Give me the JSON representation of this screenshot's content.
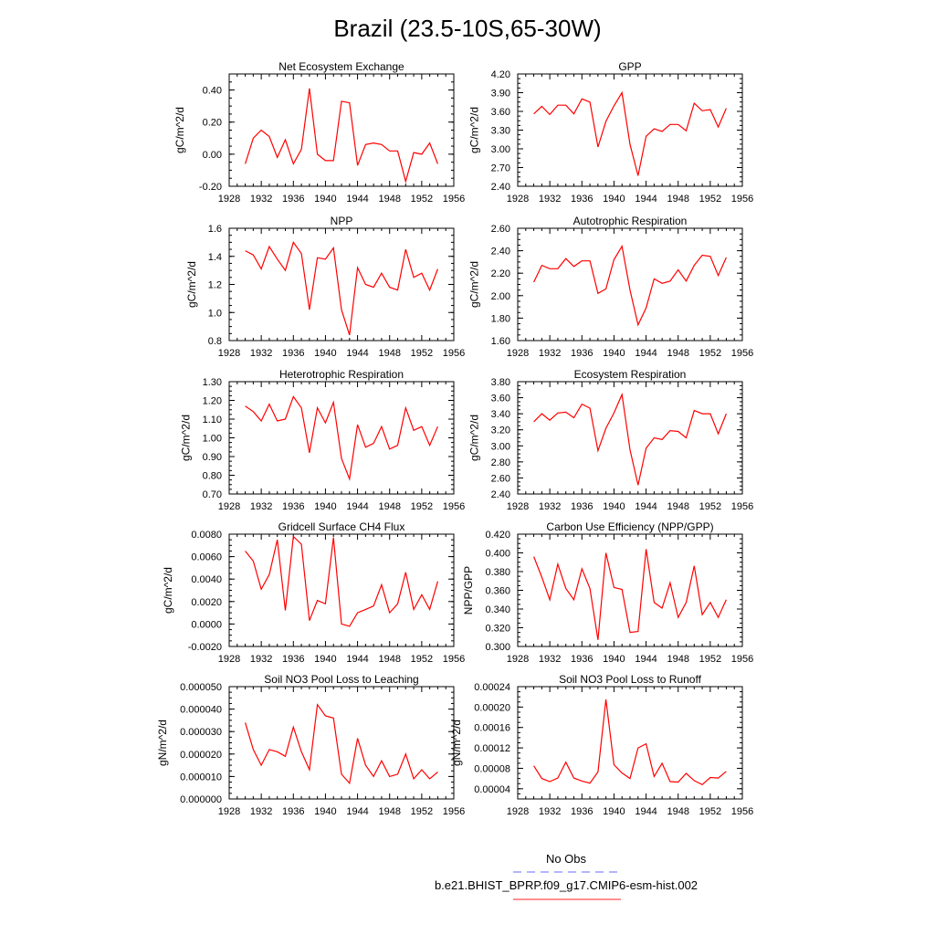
{
  "figure": {
    "title": "Brazil (23.5-10S,65-30W)",
    "legend": [
      {
        "label": "No Obs",
        "color": "#6a6aff",
        "dash": true
      },
      {
        "label": "b.e21.BHIST_BPRP.f09_g17.CMIP6-esm-hist.002",
        "color": "#ff2020",
        "dash": false
      }
    ],
    "series_color": "#ff0000"
  },
  "chart_data": [
    {
      "type": "line",
      "title": "Net Ecosystem Exchange",
      "ylabel": "gC/m^2/d",
      "xlim": [
        1928,
        1956
      ],
      "xticks": [
        "1928",
        "1932",
        "1936",
        "1940",
        "1944",
        "1948",
        "1952",
        "1956"
      ],
      "ylim": [
        -0.2,
        0.5
      ],
      "yticks": [
        "-0.20",
        "0.00",
        "0.20",
        "0.40"
      ],
      "ytick_values": [
        -0.2,
        0.0,
        0.2,
        0.4
      ],
      "x": [
        1930,
        1931,
        1932,
        1933,
        1934,
        1935,
        1936,
        1937,
        1938,
        1939,
        1940,
        1941,
        1942,
        1943,
        1944,
        1945,
        1946,
        1947,
        1948,
        1949,
        1950,
        1951,
        1952,
        1953,
        1954
      ],
      "values": [
        -0.06,
        0.1,
        0.15,
        0.11,
        -0.02,
        0.09,
        -0.06,
        0.03,
        0.41,
        0.0,
        -0.04,
        -0.04,
        0.33,
        0.32,
        -0.07,
        0.06,
        0.07,
        0.06,
        0.02,
        0.02,
        -0.17,
        0.01,
        0.0,
        0.07,
        -0.06
      ]
    },
    {
      "type": "line",
      "title": "GPP",
      "ylabel": "gC/m^2/d",
      "xlim": [
        1928,
        1956
      ],
      "xticks": [
        "1928",
        "1932",
        "1936",
        "1940",
        "1944",
        "1948",
        "1952",
        "1956"
      ],
      "ylim": [
        2.4,
        4.2
      ],
      "yticks": [
        "2.40",
        "2.70",
        "3.00",
        "3.30",
        "3.60",
        "3.90",
        "4.20"
      ],
      "ytick_values": [
        2.4,
        2.7,
        3.0,
        3.3,
        3.6,
        3.9,
        4.2
      ],
      "x": [
        1930,
        1931,
        1932,
        1933,
        1934,
        1935,
        1936,
        1937,
        1938,
        1939,
        1940,
        1941,
        1942,
        1943,
        1944,
        1945,
        1946,
        1947,
        1948,
        1949,
        1950,
        1951,
        1952,
        1953,
        1954
      ],
      "values": [
        3.56,
        3.68,
        3.55,
        3.7,
        3.7,
        3.56,
        3.8,
        3.75,
        3.03,
        3.44,
        3.69,
        3.9,
        3.07,
        2.57,
        3.2,
        3.32,
        3.28,
        3.39,
        3.39,
        3.29,
        3.73,
        3.61,
        3.63,
        3.35,
        3.65
      ]
    },
    {
      "type": "line",
      "title": "NPP",
      "ylabel": "gC/m^2/d",
      "xlim": [
        1928,
        1956
      ],
      "xticks": [
        "1928",
        "1932",
        "1936",
        "1940",
        "1944",
        "1948",
        "1952",
        "1956"
      ],
      "ylim": [
        0.8,
        1.6
      ],
      "yticks": [
        "0.8",
        "1.0",
        "1.2",
        "1.4",
        "1.6"
      ],
      "ytick_values": [
        0.8,
        1.0,
        1.2,
        1.4,
        1.6
      ],
      "x": [
        1930,
        1931,
        1932,
        1933,
        1934,
        1935,
        1936,
        1937,
        1938,
        1939,
        1940,
        1941,
        1942,
        1943,
        1944,
        1945,
        1946,
        1947,
        1948,
        1949,
        1950,
        1951,
        1952,
        1953,
        1954
      ],
      "values": [
        1.44,
        1.41,
        1.31,
        1.47,
        1.38,
        1.3,
        1.5,
        1.42,
        1.02,
        1.39,
        1.38,
        1.46,
        1.02,
        0.84,
        1.32,
        1.2,
        1.18,
        1.28,
        1.18,
        1.16,
        1.45,
        1.25,
        1.28,
        1.16,
        1.31
      ]
    },
    {
      "type": "line",
      "title": "Autotrophic Respiration",
      "ylabel": "gC/m^2/d",
      "xlim": [
        1928,
        1956
      ],
      "xticks": [
        "1928",
        "1932",
        "1936",
        "1940",
        "1944",
        "1948",
        "1952",
        "1956"
      ],
      "ylim": [
        1.6,
        2.6
      ],
      "yticks": [
        "1.60",
        "1.80",
        "2.00",
        "2.20",
        "2.40",
        "2.60"
      ],
      "ytick_values": [
        1.6,
        1.8,
        2.0,
        2.2,
        2.4,
        2.6
      ],
      "x": [
        1930,
        1931,
        1932,
        1933,
        1934,
        1935,
        1936,
        1937,
        1938,
        1939,
        1940,
        1941,
        1942,
        1943,
        1944,
        1945,
        1946,
        1947,
        1948,
        1949,
        1950,
        1951,
        1952,
        1953,
        1954
      ],
      "values": [
        2.12,
        2.27,
        2.24,
        2.24,
        2.33,
        2.26,
        2.31,
        2.31,
        2.02,
        2.06,
        2.32,
        2.44,
        2.05,
        1.74,
        1.89,
        2.15,
        2.11,
        2.13,
        2.23,
        2.13,
        2.27,
        2.36,
        2.35,
        2.18,
        2.34
      ]
    },
    {
      "type": "line",
      "title": "Heterotrophic Respiration",
      "ylabel": "gC/m^2/d",
      "xlim": [
        1928,
        1956
      ],
      "xticks": [
        "1928",
        "1932",
        "1936",
        "1940",
        "1944",
        "1948",
        "1952",
        "1956"
      ],
      "ylim": [
        0.7,
        1.3
      ],
      "yticks": [
        "0.70",
        "0.80",
        "0.90",
        "1.00",
        "1.10",
        "1.20",
        "1.30"
      ],
      "ytick_values": [
        0.7,
        0.8,
        0.9,
        1.0,
        1.1,
        1.2,
        1.3
      ],
      "x": [
        1930,
        1931,
        1932,
        1933,
        1934,
        1935,
        1936,
        1937,
        1938,
        1939,
        1940,
        1941,
        1942,
        1943,
        1944,
        1945,
        1946,
        1947,
        1948,
        1949,
        1950,
        1951,
        1952,
        1953,
        1954
      ],
      "values": [
        1.17,
        1.14,
        1.09,
        1.18,
        1.09,
        1.1,
        1.22,
        1.16,
        0.92,
        1.16,
        1.08,
        1.19,
        0.89,
        0.78,
        1.07,
        0.95,
        0.97,
        1.06,
        0.94,
        0.96,
        1.16,
        1.04,
        1.06,
        0.96,
        1.06
      ]
    },
    {
      "type": "line",
      "title": "Ecosystem Respiration",
      "ylabel": "gC/m^2/d",
      "xlim": [
        1928,
        1956
      ],
      "xticks": [
        "1928",
        "1932",
        "1936",
        "1940",
        "1944",
        "1948",
        "1952",
        "1956"
      ],
      "ylim": [
        2.4,
        3.8
      ],
      "yticks": [
        "2.40",
        "2.60",
        "2.80",
        "3.00",
        "3.20",
        "3.40",
        "3.60",
        "3.80"
      ],
      "ytick_values": [
        2.4,
        2.6,
        2.8,
        3.0,
        3.2,
        3.4,
        3.6,
        3.8
      ],
      "x": [
        1930,
        1931,
        1932,
        1933,
        1934,
        1935,
        1936,
        1937,
        1938,
        1939,
        1940,
        1941,
        1942,
        1943,
        1944,
        1945,
        1946,
        1947,
        1948,
        1949,
        1950,
        1951,
        1952,
        1953,
        1954
      ],
      "values": [
        3.3,
        3.4,
        3.32,
        3.41,
        3.42,
        3.35,
        3.52,
        3.47,
        2.94,
        3.22,
        3.41,
        3.64,
        2.95,
        2.51,
        2.97,
        3.1,
        3.08,
        3.19,
        3.18,
        3.1,
        3.44,
        3.4,
        3.4,
        3.15,
        3.4
      ]
    },
    {
      "type": "line",
      "title": "Gridcell Surface CH4 Flux",
      "ylabel": "gC/m^2/d",
      "xlim": [
        1928,
        1956
      ],
      "xticks": [
        "1928",
        "1932",
        "1936",
        "1940",
        "1944",
        "1948",
        "1952",
        "1956"
      ],
      "ylim": [
        -0.002,
        0.008
      ],
      "yticks": [
        "-0.0020",
        "0.0000",
        "0.0020",
        "0.0040",
        "0.0060",
        "0.0080"
      ],
      "ytick_values": [
        -0.002,
        0.0,
        0.002,
        0.004,
        0.006,
        0.008
      ],
      "x": [
        1930,
        1931,
        1932,
        1933,
        1934,
        1935,
        1936,
        1937,
        1938,
        1939,
        1940,
        1941,
        1942,
        1943,
        1944,
        1945,
        1946,
        1947,
        1948,
        1949,
        1950,
        1951,
        1952,
        1953,
        1954
      ],
      "values": [
        0.0065,
        0.0056,
        0.0031,
        0.0044,
        0.0075,
        0.0012,
        0.0078,
        0.0071,
        0.0003,
        0.0021,
        0.0018,
        0.0077,
        0.0,
        -0.0002,
        0.001,
        0.0013,
        0.0016,
        0.0035,
        0.001,
        0.0018,
        0.0046,
        0.0013,
        0.0026,
        0.0013,
        0.0038
      ]
    },
    {
      "type": "line",
      "title": "Carbon Use Efficiency (NPP/GPP)",
      "ylabel": "NPP/GPP",
      "xlim": [
        1928,
        1956
      ],
      "xticks": [
        "1928",
        "1932",
        "1936",
        "1940",
        "1944",
        "1948",
        "1952",
        "1956"
      ],
      "ylim": [
        0.3,
        0.42
      ],
      "yticks": [
        "0.300",
        "0.320",
        "0.340",
        "0.360",
        "0.380",
        "0.400",
        "0.420"
      ],
      "ytick_values": [
        0.3,
        0.32,
        0.34,
        0.36,
        0.38,
        0.4,
        0.42
      ],
      "x": [
        1930,
        1931,
        1932,
        1933,
        1934,
        1935,
        1936,
        1937,
        1938,
        1939,
        1940,
        1941,
        1942,
        1943,
        1944,
        1945,
        1946,
        1947,
        1948,
        1949,
        1950,
        1951,
        1952,
        1953,
        1954
      ],
      "values": [
        0.396,
        0.374,
        0.35,
        0.388,
        0.362,
        0.35,
        0.383,
        0.362,
        0.307,
        0.4,
        0.363,
        0.361,
        0.315,
        0.316,
        0.404,
        0.347,
        0.341,
        0.368,
        0.331,
        0.347,
        0.386,
        0.334,
        0.347,
        0.331,
        0.35
      ]
    },
    {
      "type": "line",
      "title": "Soil NO3 Pool Loss to Leaching",
      "ylabel": "gN/m^2/d",
      "xlim": [
        1928,
        1956
      ],
      "xticks": [
        "1928",
        "1932",
        "1936",
        "1940",
        "1944",
        "1948",
        "1952",
        "1956"
      ],
      "ylim": [
        0.0,
        5e-05
      ],
      "yticks": [
        "0.000000",
        "0.000010",
        "0.000020",
        "0.000030",
        "0.000040",
        "0.000050"
      ],
      "ytick_values": [
        0.0,
        1e-05,
        2e-05,
        3e-05,
        4e-05,
        5e-05
      ],
      "x": [
        1930,
        1931,
        1932,
        1933,
        1934,
        1935,
        1936,
        1937,
        1938,
        1939,
        1940,
        1941,
        1942,
        1943,
        1944,
        1945,
        1946,
        1947,
        1948,
        1949,
        1950,
        1951,
        1952,
        1953,
        1954
      ],
      "values": [
        3.4e-05,
        2.2e-05,
        1.5e-05,
        2.2e-05,
        2.1e-05,
        1.9e-05,
        3.2e-05,
        2.1e-05,
        1.3e-05,
        4.2e-05,
        3.7e-05,
        3.6e-05,
        1.1e-05,
        7e-06,
        2.7e-05,
        1.5e-05,
        1e-05,
        1.7e-05,
        1e-05,
        1.1e-05,
        2e-05,
        9e-06,
        1.3e-05,
        9e-06,
        1.2e-05
      ]
    },
    {
      "type": "line",
      "title": "Soil NO3 Pool Loss to Runoff",
      "ylabel": "gN/m^2/d",
      "xlim": [
        1928,
        1956
      ],
      "xticks": [
        "1928",
        "1932",
        "1936",
        "1940",
        "1944",
        "1948",
        "1952",
        "1956"
      ],
      "ylim": [
        2e-05,
        0.00024
      ],
      "yticks": [
        "0.00004",
        "0.00008",
        "0.00012",
        "0.00016",
        "0.00020",
        "0.00024"
      ],
      "ytick_values": [
        4e-05,
        8e-05,
        0.00012,
        0.00016,
        0.0002,
        0.00024
      ],
      "x": [
        1930,
        1931,
        1932,
        1933,
        1934,
        1935,
        1936,
        1937,
        1938,
        1939,
        1940,
        1941,
        1942,
        1943,
        1944,
        1945,
        1946,
        1947,
        1948,
        1949,
        1950,
        1951,
        1952,
        1953,
        1954
      ],
      "values": [
        8.5e-05,
        6e-05,
        5.4e-05,
        6.1e-05,
        9.2e-05,
        6.1e-05,
        5.5e-05,
        5.1e-05,
        7.3e-05,
        0.000215,
        8.7e-05,
        7.1e-05,
        6e-05,
        0.00012,
        0.000128,
        6.4e-05,
        9e-05,
        5.4e-05,
        5.3e-05,
        7e-05,
        5.6e-05,
        4.8e-05,
        6.2e-05,
        6.1e-05,
        7.4e-05
      ]
    }
  ]
}
